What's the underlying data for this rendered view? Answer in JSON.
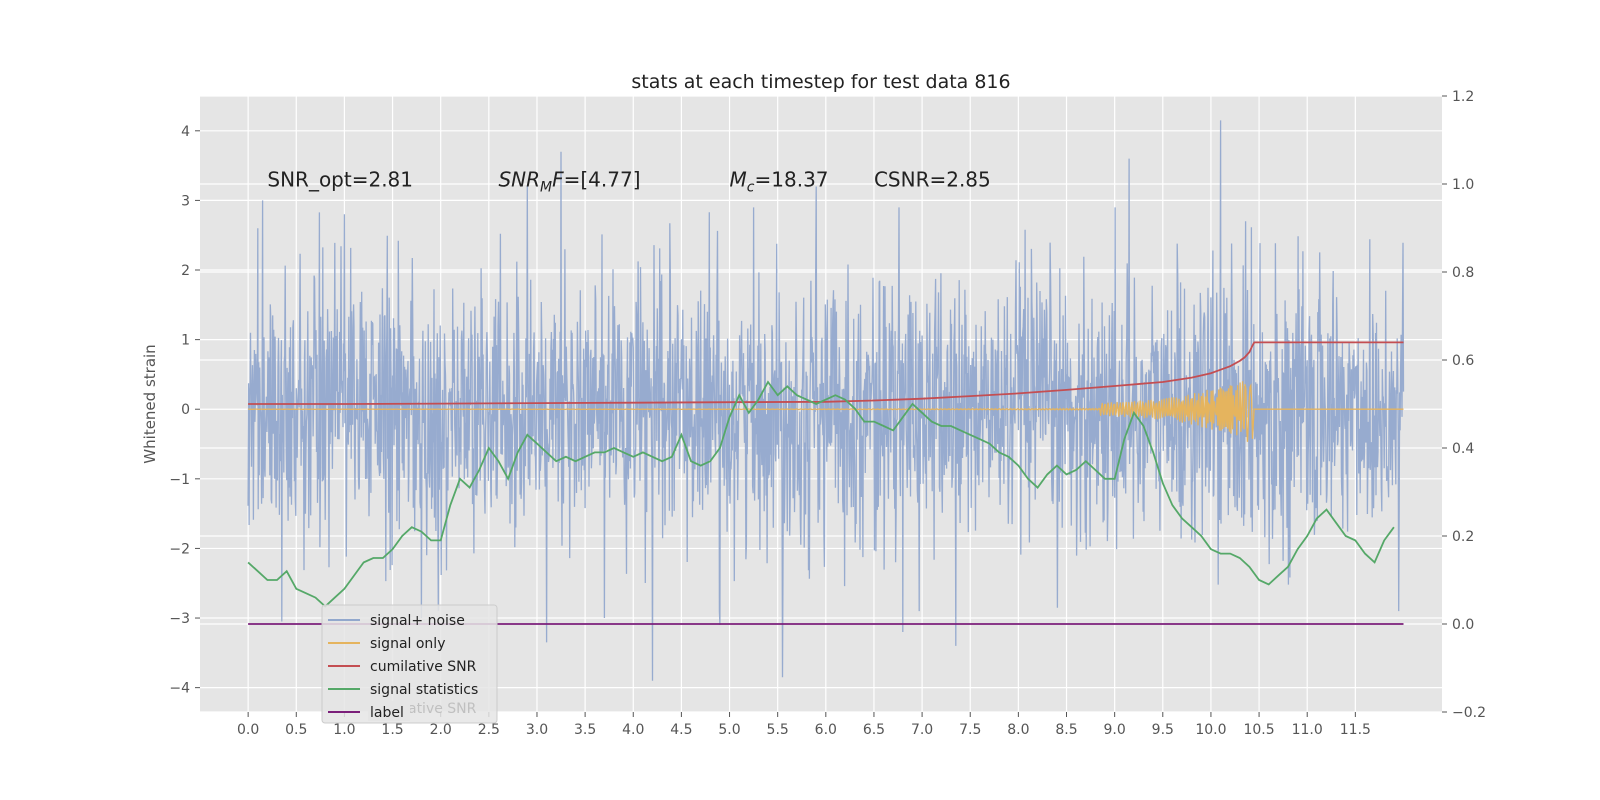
{
  "chart_data": {
    "type": "line",
    "title": "stats at each timestep for test data 816",
    "ylabel": "Whitened strain",
    "ylabel_right": "",
    "xlim": [
      -0.5,
      12.4
    ],
    "ylim": [
      -4.35,
      4.5
    ],
    "ylim_right": [
      -0.2,
      1.2
    ],
    "x_ticks": [
      0.0,
      0.5,
      1.0,
      1.5,
      2.0,
      2.5,
      3.0,
      3.5,
      4.0,
      4.5,
      5.0,
      5.5,
      6.0,
      6.5,
      7.0,
      7.5,
      8.0,
      8.5,
      9.0,
      9.5,
      10.0,
      10.5,
      11.0,
      11.5
    ],
    "x_tick_labels": [
      "0.0",
      "0.5",
      "1.0",
      "1.5",
      "2.0",
      "2.5",
      "3.0",
      "3.5",
      "4.0",
      "4.5",
      "5.0",
      "5.5",
      "6.0",
      "6.5",
      "7.0",
      "7.5",
      "8.0",
      "8.5",
      "9.0",
      "9.5",
      "10.0",
      "10.5",
      "11.0",
      "11.5"
    ],
    "y_ticks": [
      -4,
      -3,
      -2,
      -1,
      0,
      1,
      2,
      3,
      4
    ],
    "y_tick_labels": [
      "−4",
      "−3",
      "−2",
      "−1",
      "0",
      "1",
      "2",
      "3",
      "4"
    ],
    "y_ticks_right": [
      -0.2,
      0.0,
      0.2,
      0.4,
      0.6,
      0.8,
      1.0,
      1.2
    ],
    "y_tick_labels_right": [
      "−0.2",
      "0.0",
      "0.2",
      "0.4",
      "0.6",
      "0.8",
      "1.0",
      "1.2"
    ],
    "grid": true,
    "legend_position": "lower-left",
    "annotations": [
      {
        "x": 0.2,
        "y": 3.3,
        "text": "SNR_opt=2.81"
      },
      {
        "x": 2.6,
        "y": 3.3,
        "text": "SNR_MF=[4.77]",
        "lead": "SNR",
        "sub": "M",
        "tail": "F=[4.77]"
      },
      {
        "x": 5.0,
        "y": 3.3,
        "text": "M_c=18.37",
        "lead": "M",
        "sub": "c",
        "tail": "=18.37"
      },
      {
        "x": 6.5,
        "y": 3.3,
        "text": "CSNR=2.85"
      }
    ],
    "series": [
      {
        "name": "signal+ noise",
        "color": "#92a8cd",
        "axis": "left",
        "kind": "noise",
        "x_range": [
          0.0,
          12.0
        ],
        "approx_std": 0.95,
        "peaks": [
          [
            0.1,
            2.6
          ],
          [
            0.15,
            3.0
          ],
          [
            1.0,
            2.8
          ],
          [
            2.9,
            3.2
          ],
          [
            3.25,
            3.7
          ],
          [
            5.9,
            3.2
          ],
          [
            9.15,
            3.6
          ],
          [
            10.1,
            4.15
          ],
          [
            4.2,
            -3.9
          ],
          [
            5.55,
            -3.85
          ],
          [
            3.1,
            -3.35
          ],
          [
            7.35,
            -3.4
          ],
          [
            6.8,
            -3.2
          ],
          [
            0.35,
            -3.05
          ],
          [
            1.8,
            -3.0
          ],
          [
            4.9,
            -3.1
          ],
          [
            11.95,
            -2.9
          ],
          [
            3.7,
            -3.0
          ]
        ]
      },
      {
        "name": "signal only",
        "color": "#e5b45e",
        "axis": "left",
        "kind": "chirp",
        "x_range": [
          0.0,
          12.0
        ],
        "merger_x": 10.45,
        "peak_amplitude": 0.65
      },
      {
        "name": "cumilative SNR",
        "color": "#c44e52",
        "axis": "right",
        "x": [
          0.0,
          1.0,
          2.0,
          3.0,
          4.0,
          5.0,
          6.0,
          6.5,
          7.0,
          7.5,
          8.0,
          8.5,
          9.0,
          9.5,
          9.8,
          10.0,
          10.1,
          10.2,
          10.3,
          10.35,
          10.4,
          10.43,
          10.45,
          11.0,
          11.5,
          12.0
        ],
        "values": [
          0.5,
          0.5,
          0.501,
          0.502,
          0.503,
          0.504,
          0.505,
          0.508,
          0.512,
          0.518,
          0.524,
          0.532,
          0.541,
          0.55,
          0.56,
          0.57,
          0.578,
          0.586,
          0.598,
          0.606,
          0.618,
          0.632,
          0.64,
          0.64,
          0.64,
          0.64
        ]
      },
      {
        "name": "signal statistics",
        "color": "#55a868",
        "axis": "right",
        "x": [
          0.0,
          0.1,
          0.2,
          0.3,
          0.4,
          0.5,
          0.6,
          0.7,
          0.8,
          0.9,
          1.0,
          1.1,
          1.2,
          1.3,
          1.4,
          1.5,
          1.6,
          1.7,
          1.8,
          1.9,
          2.0,
          2.1,
          2.2,
          2.3,
          2.4,
          2.5,
          2.6,
          2.7,
          2.8,
          2.9,
          3.0,
          3.1,
          3.2,
          3.3,
          3.4,
          3.5,
          3.6,
          3.7,
          3.8,
          3.9,
          4.0,
          4.1,
          4.2,
          4.3,
          4.4,
          4.5,
          4.6,
          4.7,
          4.8,
          4.9,
          5.0,
          5.1,
          5.2,
          5.3,
          5.4,
          5.5,
          5.6,
          5.7,
          5.8,
          5.9,
          6.0,
          6.1,
          6.2,
          6.3,
          6.4,
          6.5,
          6.6,
          6.7,
          6.8,
          6.9,
          7.0,
          7.1,
          7.2,
          7.3,
          7.4,
          7.5,
          7.6,
          7.7,
          7.8,
          7.9,
          8.0,
          8.1,
          8.2,
          8.3,
          8.4,
          8.5,
          8.6,
          8.7,
          8.8,
          8.9,
          9.0,
          9.1,
          9.2,
          9.3,
          9.4,
          9.5,
          9.6,
          9.7,
          9.8,
          9.9,
          10.0,
          10.1,
          10.2,
          10.3,
          10.4,
          10.5,
          10.6,
          10.7,
          10.8,
          10.9,
          11.0,
          11.1,
          11.2,
          11.3,
          11.4,
          11.5,
          11.6,
          11.7,
          11.8,
          11.9
        ],
        "values": [
          0.14,
          0.12,
          0.1,
          0.1,
          0.12,
          0.08,
          0.07,
          0.06,
          0.04,
          0.06,
          0.08,
          0.11,
          0.14,
          0.15,
          0.15,
          0.17,
          0.2,
          0.22,
          0.21,
          0.19,
          0.19,
          0.27,
          0.33,
          0.31,
          0.35,
          0.4,
          0.37,
          0.33,
          0.39,
          0.43,
          0.41,
          0.39,
          0.37,
          0.38,
          0.37,
          0.38,
          0.39,
          0.39,
          0.4,
          0.39,
          0.38,
          0.39,
          0.38,
          0.37,
          0.38,
          0.43,
          0.37,
          0.36,
          0.37,
          0.4,
          0.47,
          0.52,
          0.48,
          0.51,
          0.55,
          0.52,
          0.54,
          0.52,
          0.51,
          0.5,
          0.51,
          0.52,
          0.51,
          0.49,
          0.46,
          0.46,
          0.45,
          0.44,
          0.47,
          0.5,
          0.48,
          0.46,
          0.45,
          0.45,
          0.44,
          0.43,
          0.42,
          0.41,
          0.39,
          0.38,
          0.36,
          0.33,
          0.31,
          0.34,
          0.36,
          0.34,
          0.35,
          0.37,
          0.35,
          0.33,
          0.33,
          0.42,
          0.48,
          0.45,
          0.39,
          0.32,
          0.27,
          0.24,
          0.22,
          0.2,
          0.17,
          0.16,
          0.16,
          0.15,
          0.13,
          0.1,
          0.09,
          0.11,
          0.13,
          0.17,
          0.2,
          0.24,
          0.26,
          0.23,
          0.2,
          0.19,
          0.16,
          0.14,
          0.19,
          0.22
        ]
      },
      {
        "name": "label",
        "color": "#7b1f7a",
        "axis": "right",
        "x": [
          0.0,
          12.0
        ],
        "values": [
          0.0,
          0.0
        ]
      }
    ],
    "legend_ghost_text": "cumilative SNR"
  }
}
